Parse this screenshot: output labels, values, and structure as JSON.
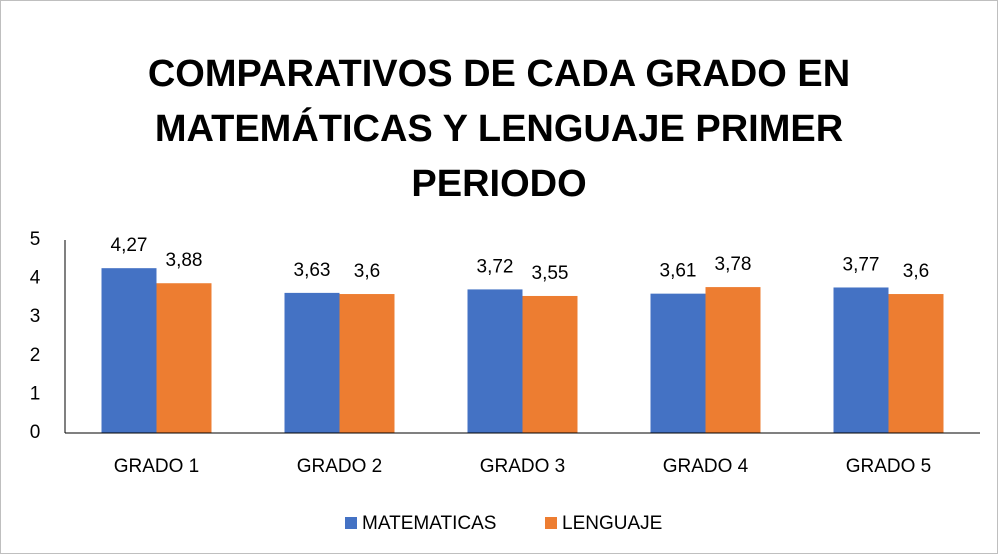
{
  "chart_data": {
    "type": "bar",
    "title": "COMPARATIVOS DE CADA GRADO EN MATEMÁTICAS Y LENGUAJE PRIMER PERIODO",
    "categories": [
      "GRADO 1",
      "GRADO 2",
      "GRADO 3",
      "GRADO 4",
      "GRADO 5"
    ],
    "series": [
      {
        "name": "MATEMATICAS",
        "color": "#4472c4",
        "values": [
          4.27,
          3.63,
          3.72,
          3.61,
          3.77
        ],
        "value_labels": [
          "4,27",
          "3,63",
          "3,72",
          "3,61",
          "3,77"
        ]
      },
      {
        "name": "LENGUAJE",
        "color": "#ed7d31",
        "values": [
          3.88,
          3.6,
          3.55,
          3.78,
          3.6
        ],
        "value_labels": [
          "3,88",
          "3,6",
          "3,55",
          "3,78",
          "3,6"
        ]
      }
    ],
    "ylim": [
      0,
      5
    ],
    "yticks": [
      0,
      1,
      2,
      3,
      4,
      5
    ],
    "grid": false,
    "legend": "bottom"
  }
}
